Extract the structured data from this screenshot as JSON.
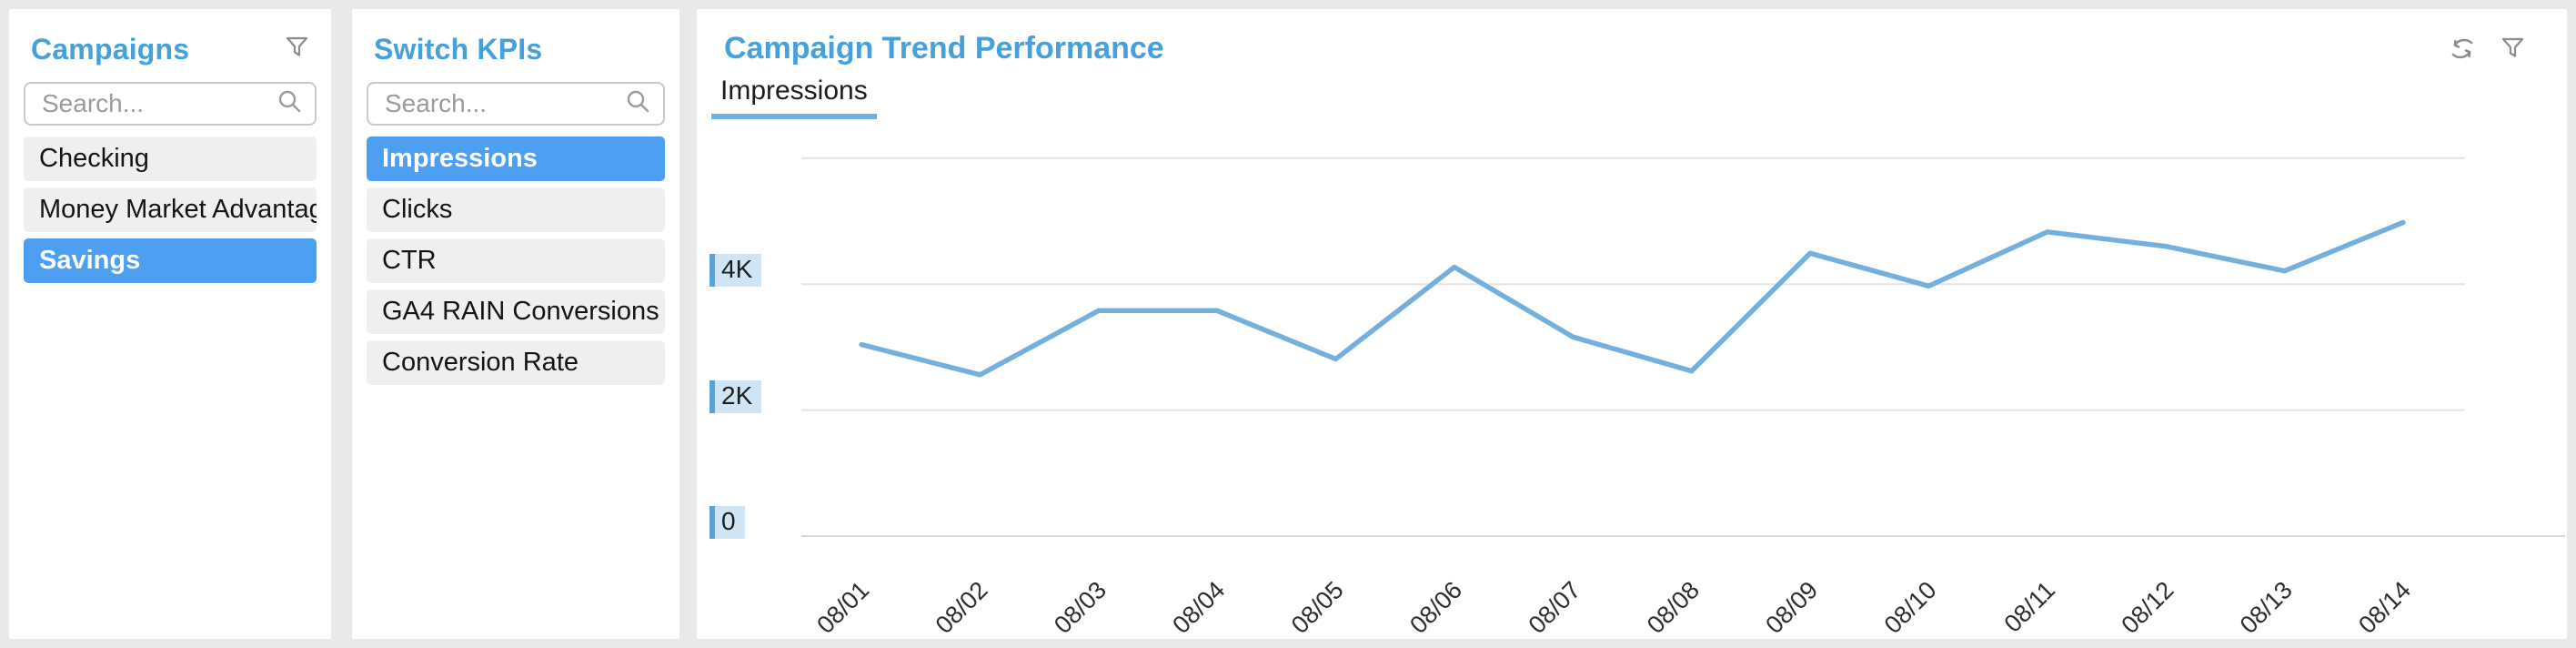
{
  "colors": {
    "accent_blue": "#45a0db",
    "selection_blue": "#4d9ff2",
    "line_blue": "#74b0de",
    "ytick_highlight_bg": "#cfe4f4",
    "ytick_highlight_bar": "#57a4da",
    "page_bg": "#e9e9ea",
    "item_bg": "#efefef"
  },
  "campaigns_panel": {
    "title": "Campaigns",
    "search_placeholder": "Search...",
    "items": [
      {
        "label": "Checking",
        "selected": false
      },
      {
        "label": "Money Market Advantage",
        "selected": false
      },
      {
        "label": "Savings",
        "selected": true
      }
    ]
  },
  "kpi_panel": {
    "title": "Switch KPIs",
    "search_placeholder": "Search...",
    "items": [
      {
        "label": "Impressions",
        "selected": true
      },
      {
        "label": "Clicks",
        "selected": false
      },
      {
        "label": "CTR",
        "selected": false
      },
      {
        "label": "GA4 RAIN Conversions",
        "selected": false
      },
      {
        "label": "Conversion Rate",
        "selected": false
      }
    ]
  },
  "chart_panel": {
    "title": "Campaign Trend Performance",
    "active_tab": "Impressions",
    "icons": [
      "sync-icon",
      "filter-icon"
    ]
  },
  "chart_data": {
    "type": "line",
    "title": "Campaign Trend Performance",
    "series_name": "Impressions",
    "categories": [
      "08/01",
      "08/02",
      "08/03",
      "08/04",
      "08/05",
      "08/06",
      "08/07",
      "08/08",
      "08/09",
      "08/10",
      "08/11",
      "08/12",
      "08/13",
      "08/14"
    ],
    "values": [
      3040,
      2560,
      3580,
      3580,
      2810,
      4270,
      3160,
      2620,
      4490,
      3970,
      4830,
      4600,
      4210,
      4980
    ],
    "xlabel": "",
    "ylabel": "",
    "ylim": [
      0,
      6000
    ],
    "grid": true,
    "grid_values": [
      6000,
      4000,
      2000,
      0
    ],
    "yticks": [
      {
        "label": "4K",
        "value": 4000
      },
      {
        "label": "2K",
        "value": 2000
      },
      {
        "label": "0",
        "value": 0
      }
    ],
    "x_label_rotation": -45,
    "line_color": "#74b0de",
    "legend_position": "none"
  }
}
